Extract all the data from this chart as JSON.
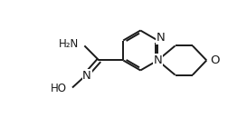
{
  "bg_color": "#ffffff",
  "line_color": "#1a1a1a",
  "atom_color": "#1a1a1a",
  "line_width": 1.4,
  "font_size": 8.5,
  "fig_width": 2.73,
  "fig_height": 1.52,
  "dpi": 100,
  "xlim": [
    0,
    10
  ],
  "ylim": [
    0,
    5.57
  ]
}
